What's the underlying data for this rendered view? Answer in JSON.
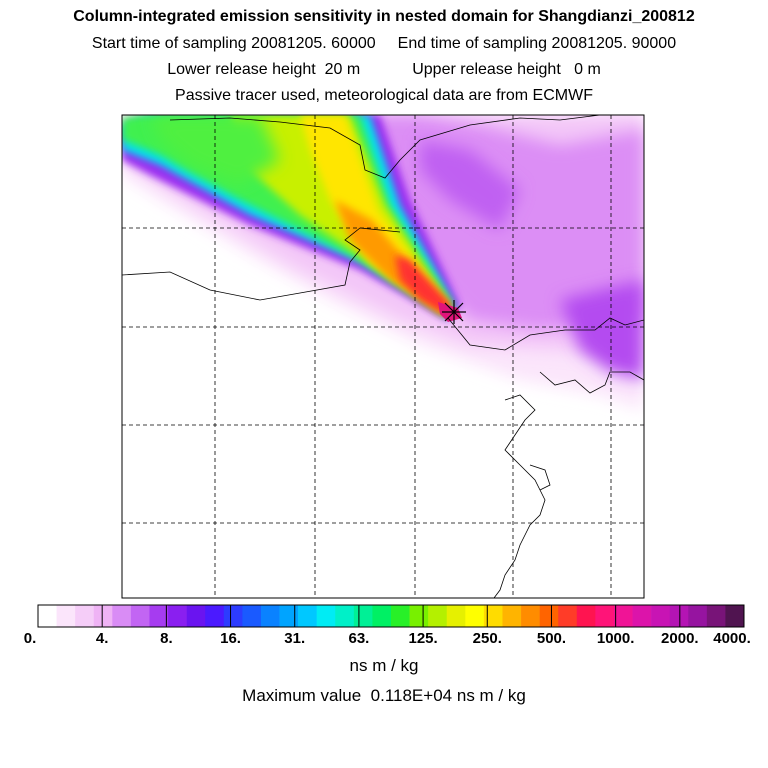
{
  "header": {
    "title": "Column-integrated emission sensitivity in nested domain for Shangdianzi_200812",
    "start_label": "Start time of sampling",
    "start_value": "20081205. 60000",
    "end_label": "End time of sampling",
    "end_value": "20081205. 90000",
    "lower_label": "Lower release height",
    "lower_value": "20 m",
    "upper_label": "Upper release height",
    "upper_value": "0 m",
    "tracer_note": "Passive tracer used, meteorological data are from ECMWF"
  },
  "chart_data": {
    "type": "heatmap",
    "title": "Column-integrated emission sensitivity in nested domain for Shangdianzi_200812",
    "release_site": "Shangdianzi",
    "colorbar": {
      "tick_labels": [
        "0.",
        "4.",
        "8.",
        "16.",
        "31.",
        "63.",
        "125.",
        "250.",
        "500.",
        "1000.",
        "2000.",
        "4000."
      ],
      "levels": [
        0,
        4,
        8,
        16,
        31,
        63,
        125,
        250,
        500,
        1000,
        2000,
        4000
      ],
      "colors": [
        "#ffffff",
        "#fbe5fb",
        "#f5cdf8",
        "#efb3f5",
        "#d98cf5",
        "#c265f3",
        "#a63cf0",
        "#8a1ff0",
        "#6a14f0",
        "#4b1aff",
        "#2d3cff",
        "#1a5aff",
        "#0a82ff",
        "#00a4ff",
        "#00c8ff",
        "#00ecf4",
        "#00f0c8",
        "#00f096",
        "#00f064",
        "#28f028",
        "#78f000",
        "#b4f000",
        "#e6f000",
        "#ffff00",
        "#ffdc00",
        "#ffb400",
        "#ff8c00",
        "#ff6400",
        "#ff3c28",
        "#ff1450",
        "#ff1478",
        "#f01496",
        "#dc14aa",
        "#c814b4",
        "#b414b4",
        "#9614a0",
        "#781478",
        "#501450"
      ]
    },
    "units": "ns m / kg",
    "max_label": "Maximum value",
    "max_value": "0.118E+04",
    "max_units": "ns m / kg",
    "grid": true
  }
}
